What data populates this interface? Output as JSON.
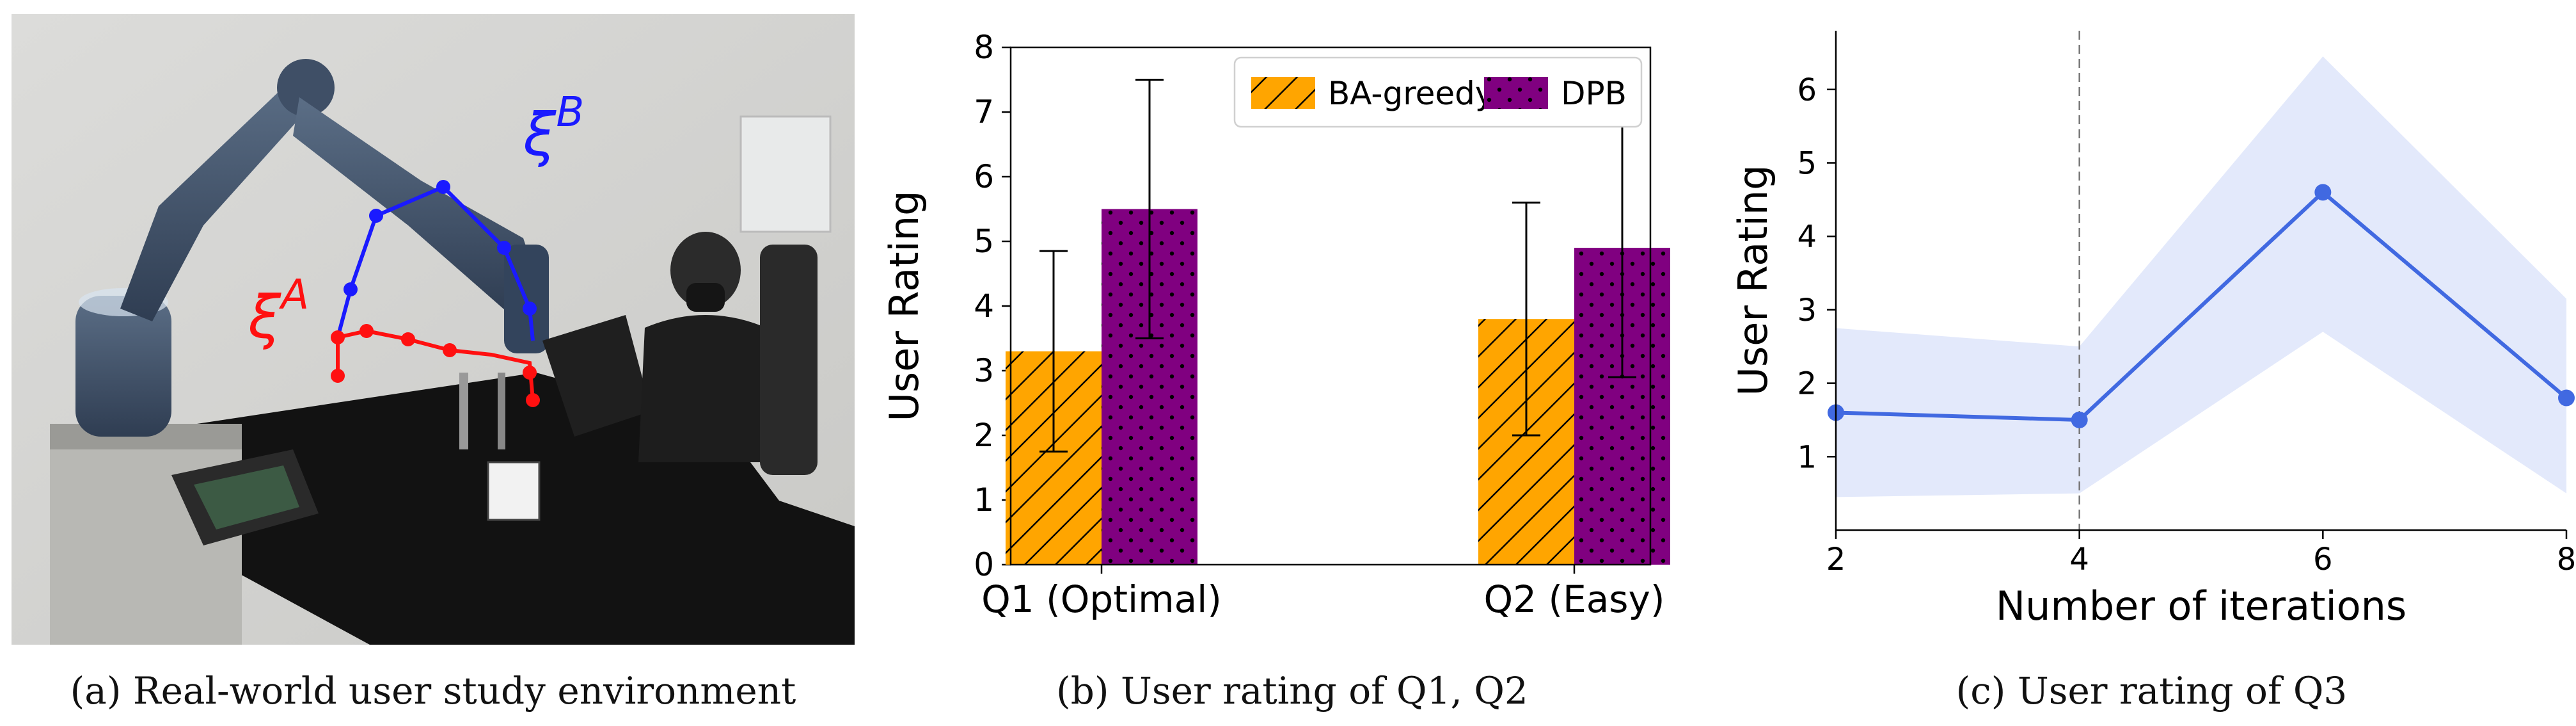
{
  "photo": {
    "label_a": "ξ",
    "label_a_sup": "A",
    "label_b": "ξ",
    "label_b_sup": "B",
    "colors": {
      "traj_a": "#ff1010",
      "traj_b": "#1a1aff"
    }
  },
  "captions": {
    "a": "(a)  Real-world user study environment",
    "b": "(b)  User rating of Q1, Q2",
    "c": "(c)  User rating of Q3"
  },
  "chart_data": [
    {
      "type": "bar",
      "title": "",
      "xlabel": "",
      "ylabel": "User Rating",
      "ylim": [
        0,
        8
      ],
      "yticks": [
        0,
        1,
        2,
        3,
        4,
        5,
        6,
        7,
        8
      ],
      "categories": [
        "Q1 (Optimal)",
        "Q2 (Easy)"
      ],
      "legend_position": "top-right",
      "series": [
        {
          "name": "BA-greedy",
          "color": "#ffa500",
          "pattern": "hatch",
          "values": [
            3.3,
            3.8
          ],
          "errors": [
            1.55,
            1.8
          ]
        },
        {
          "name": "DPB",
          "color": "#800080",
          "pattern": "dots",
          "values": [
            5.5,
            4.9
          ],
          "errors": [
            2.0,
            2.0
          ]
        }
      ]
    },
    {
      "type": "line",
      "title": "",
      "xlabel": "Number of iterations",
      "ylabel": "User Rating",
      "xlim": [
        2,
        8
      ],
      "ylim": [
        0,
        6.8
      ],
      "xticks": [
        2,
        4,
        6,
        8
      ],
      "yticks": [
        1,
        2,
        3,
        4,
        5,
        6
      ],
      "vline_x": 4,
      "series": [
        {
          "name": "rating",
          "color": "#4169e1",
          "x": [
            2,
            4,
            6,
            8
          ],
          "y": [
            1.6,
            1.5,
            4.6,
            1.8
          ],
          "lower": [
            0.45,
            0.5,
            2.7,
            0.5
          ],
          "upper": [
            2.75,
            2.5,
            6.45,
            3.15
          ]
        }
      ]
    }
  ]
}
